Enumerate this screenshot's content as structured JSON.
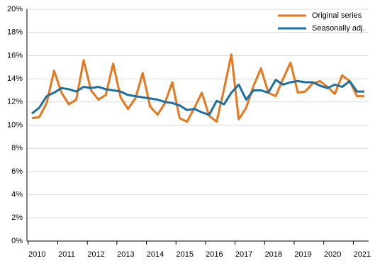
{
  "chart_data": {
    "type": "line",
    "categories": [
      "2010",
      null,
      null,
      null,
      "2011",
      null,
      null,
      null,
      "2012",
      null,
      null,
      null,
      "2013",
      null,
      null,
      null,
      "2014",
      null,
      null,
      null,
      "2015",
      null,
      null,
      null,
      "2016",
      null,
      null,
      null,
      "2017",
      null,
      null,
      null,
      "2018",
      null,
      null,
      null,
      "2019",
      null,
      null,
      null,
      "2020",
      null,
      null,
      null,
      "2021",
      null
    ],
    "series": [
      {
        "name": "Original series",
        "color": "#e8761d",
        "values": [
          10.6,
          10.7,
          11.9,
          14.7,
          12.8,
          11.8,
          12.2,
          15.6,
          13.0,
          12.2,
          12.6,
          15.3,
          12.4,
          11.4,
          12.3,
          14.5,
          11.6,
          10.9,
          11.9,
          13.7,
          10.6,
          10.3,
          11.5,
          12.8,
          10.8,
          10.3,
          13.1,
          16.1,
          10.5,
          11.5,
          13.4,
          14.9,
          12.8,
          12.5,
          14.0,
          15.4,
          12.8,
          12.9,
          13.6,
          13.8,
          13.3,
          12.7,
          14.3,
          13.8,
          12.5,
          12.5
        ]
      },
      {
        "name": "Seasonally adj.",
        "color": "#1a6fa3",
        "values": [
          11.0,
          11.5,
          12.5,
          12.8,
          13.2,
          13.1,
          12.9,
          13.3,
          13.2,
          13.3,
          13.1,
          13.0,
          12.9,
          12.6,
          12.5,
          12.4,
          12.3,
          12.2,
          12.0,
          11.9,
          11.7,
          11.3,
          11.4,
          11.1,
          10.9,
          12.1,
          11.8,
          12.8,
          13.5,
          12.2,
          13.0,
          13.0,
          12.8,
          13.9,
          13.5,
          13.7,
          13.8,
          13.7,
          13.7,
          13.4,
          13.2,
          13.5,
          13.3,
          13.8,
          12.9,
          12.9
        ]
      }
    ],
    "ylim": [
      0,
      20
    ],
    "yticks": [
      {
        "value": 0,
        "label": "0%"
      },
      {
        "value": 2,
        "label": "2%"
      },
      {
        "value": 4,
        "label": "4%"
      },
      {
        "value": 6,
        "label": "6%"
      },
      {
        "value": 8,
        "label": "8%"
      },
      {
        "value": 10,
        "label": "10%"
      },
      {
        "value": 12,
        "label": "12%"
      },
      {
        "value": 14,
        "label": "14%"
      },
      {
        "value": 16,
        "label": "16%"
      },
      {
        "value": 18,
        "label": "18%"
      },
      {
        "value": 20,
        "label": "20%"
      }
    ],
    "grid": true,
    "legend": "upper right"
  }
}
